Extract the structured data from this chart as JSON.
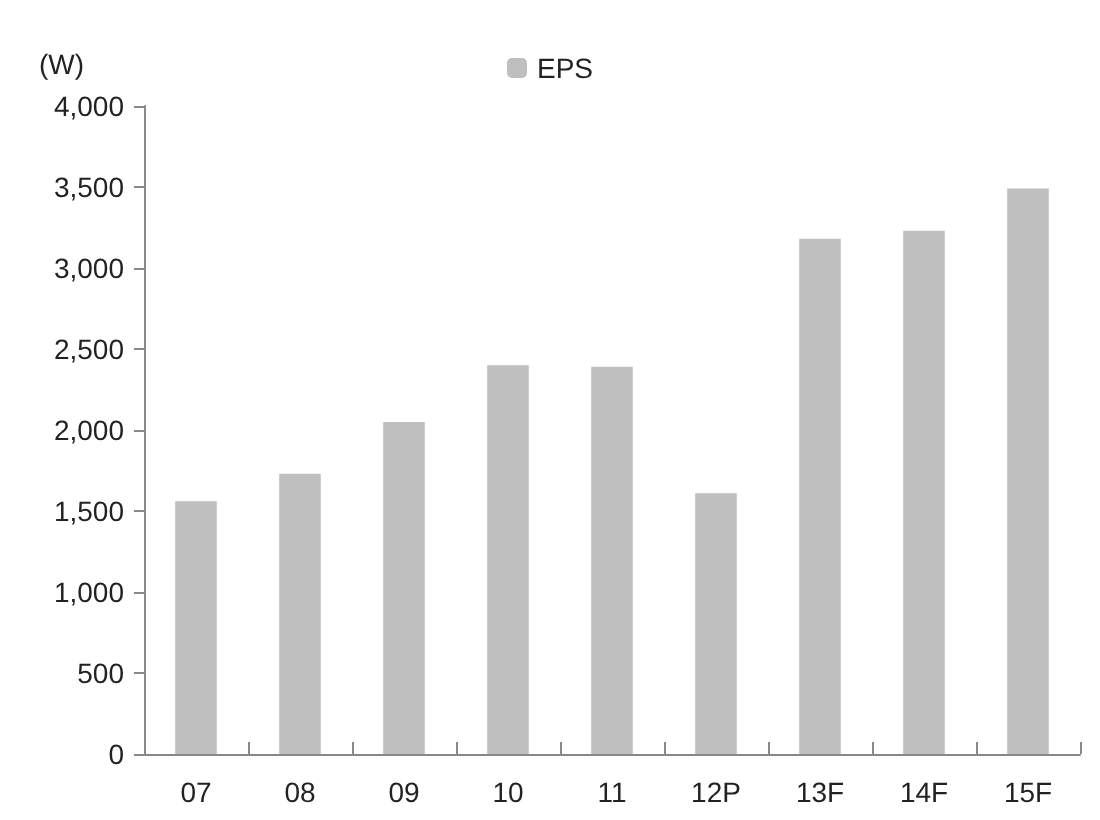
{
  "chart_data": {
    "type": "bar",
    "ylabel": "(W)",
    "categories": [
      "07",
      "08",
      "09",
      "10",
      "11",
      "12P",
      "13F",
      "14F",
      "15F"
    ],
    "series": [
      {
        "name": "EPS",
        "color": "#bfbfbf",
        "values": [
          1560,
          1730,
          2050,
          2400,
          2390,
          1610,
          3180,
          3230,
          3490
        ]
      }
    ],
    "ylim": [
      0,
      4000
    ],
    "yticks": [
      0,
      500,
      {
        "value": 1000,
        "label": "1,000"
      },
      {
        "value": 1500,
        "label": "1,500"
      },
      {
        "value": 2000,
        "label": "2,000"
      },
      {
        "value": 2500,
        "label": "2,500"
      },
      {
        "value": 3000,
        "label": "3,000"
      },
      {
        "value": 3500,
        "label": "3,500"
      },
      {
        "value": 4000,
        "label": "4,000"
      }
    ],
    "grid": false,
    "legend": "top"
  }
}
